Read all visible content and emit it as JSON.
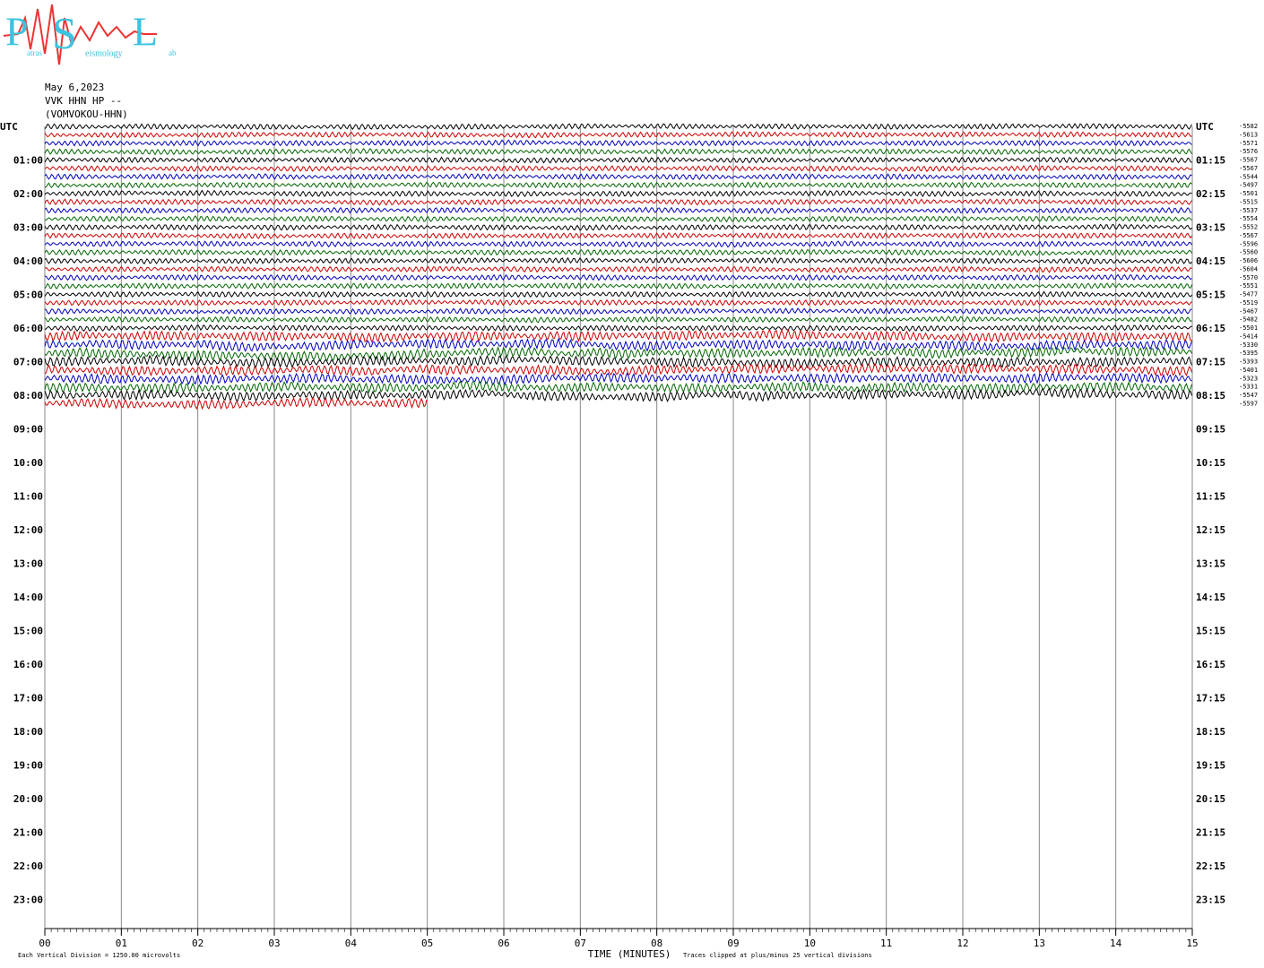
{
  "logo": {
    "letters": [
      "P",
      "S",
      "L"
    ],
    "words": [
      "atras",
      "eismology",
      "ab"
    ]
  },
  "chart_data": {
    "type": "helicorder",
    "title_lines": [
      "May 6,2023",
      "VVK HHN HP --",
      "(VOMVOKOU-HHN)"
    ],
    "left_labels": [
      "UTC",
      "01:00",
      "02:00",
      "03:00",
      "04:00",
      "05:00",
      "06:00",
      "07:00",
      "08:00",
      "09:00",
      "10:00",
      "11:00",
      "12:00",
      "13:00",
      "14:00",
      "15:00",
      "16:00",
      "17:00",
      "18:00",
      "19:00",
      "20:00",
      "21:00",
      "22:00",
      "23:00"
    ],
    "right_labels": [
      "UTC",
      "01:15",
      "02:15",
      "03:15",
      "04:15",
      "05:15",
      "06:15",
      "07:15",
      "08:15",
      "09:15",
      "10:15",
      "11:15",
      "12:15",
      "13:15",
      "14:15",
      "15:15",
      "16:15",
      "17:15",
      "18:15",
      "19:15",
      "20:15",
      "21:15",
      "22:15",
      "23:15"
    ],
    "trace_offsets": [
      -5582,
      -5613,
      -5571,
      -5576,
      -5567,
      -5567,
      -5544,
      -5497,
      -5501,
      -5515,
      -5537,
      -5554,
      -5552,
      -5567,
      -5596,
      -5560,
      -5606,
      -5604,
      -5570,
      -5551,
      -5477,
      -5519,
      -5467,
      -5482,
      -5501,
      -5414,
      -5330,
      -5395,
      -5393,
      -5401,
      -5323,
      -5331,
      -5547,
      -5597
    ],
    "trace_colors": [
      "#000000",
      "#cc0000",
      "#0000bb",
      "#006600"
    ],
    "last_trace_end_minute": 5,
    "xlim": [
      0,
      15
    ],
    "xticks": [
      {
        "value": 0,
        "label": "00"
      },
      {
        "value": 1,
        "label": "01"
      },
      {
        "value": 2,
        "label": "02"
      },
      {
        "value": 3,
        "label": "03"
      },
      {
        "value": 4,
        "label": "04"
      },
      {
        "value": 5,
        "label": "05"
      },
      {
        "value": 6,
        "label": "06"
      },
      {
        "value": 7,
        "label": "07"
      },
      {
        "value": 8,
        "label": "08"
      },
      {
        "value": 9,
        "label": "09"
      },
      {
        "value": 10,
        "label": "10"
      },
      {
        "value": 11,
        "label": "11"
      },
      {
        "value": 12,
        "label": "12"
      },
      {
        "value": 13,
        "label": "13"
      },
      {
        "value": 14,
        "label": "14"
      },
      {
        "value": 15,
        "label": "15"
      }
    ],
    "x_label": "TIME (MINUTES)",
    "notes": [
      "Each Vertical Division = 1250.00 microvolts",
      "Traces clipped at plus/minus 25 vertical divisions"
    ]
  }
}
